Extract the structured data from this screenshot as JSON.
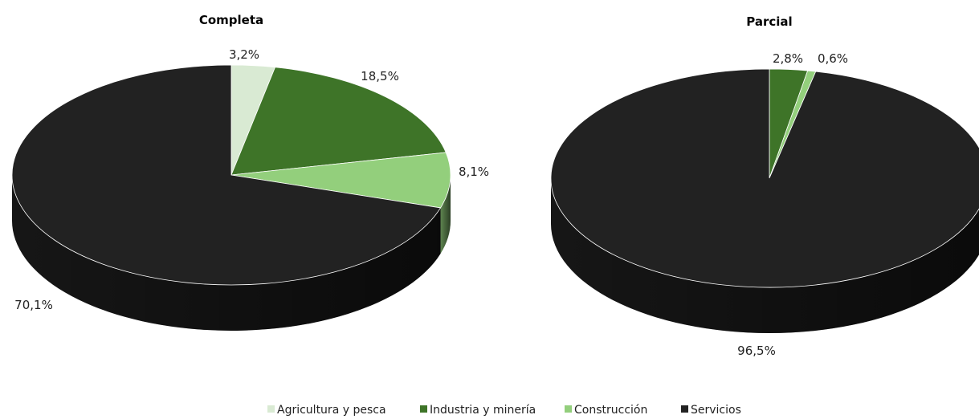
{
  "colors": {
    "agricultura": "#d9ead3",
    "industria": "#3e7428",
    "construccion": "#93cf7c",
    "servicios": "#222222"
  },
  "legend": [
    {
      "label": "Agricultura y pesca",
      "color": "#d9ead3"
    },
    {
      "label": "Industria y minería",
      "color": "#3e7428"
    },
    {
      "label": "Construcción",
      "color": "#93cf7c"
    },
    {
      "label": "Servicios",
      "color": "#222222"
    }
  ],
  "chart_data": [
    {
      "type": "pie",
      "title": "Completa",
      "categories": [
        "Agricultura y pesca",
        "Industria y minería",
        "Construcción",
        "Servicios"
      ],
      "values": [
        3.2,
        18.5,
        8.1,
        70.1
      ],
      "labels": [
        "3,2%",
        "18,5%",
        "8,1%",
        "70,1%"
      ]
    },
    {
      "type": "pie",
      "title": "Parcial",
      "categories": [
        "Agricultura y pesca",
        "Industria y minería",
        "Construcción",
        "Servicios"
      ],
      "values": [
        0.0,
        2.8,
        0.6,
        96.5
      ],
      "labels": [
        "",
        "2,8%",
        "0,6%",
        "96,5%"
      ]
    }
  ]
}
